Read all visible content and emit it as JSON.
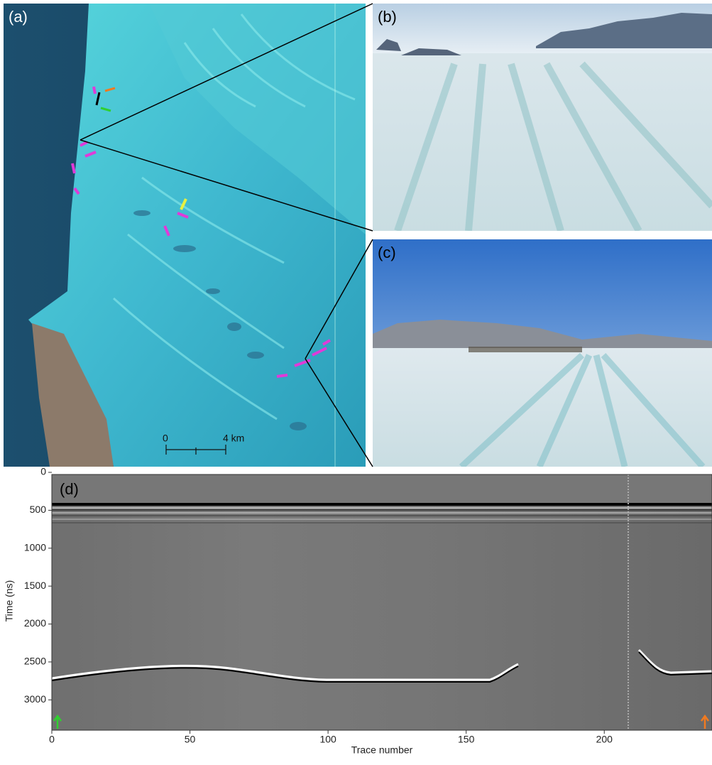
{
  "panel_a": {
    "label": "(a)",
    "scale_bar": {
      "start_label": "0",
      "end_label": "4 km"
    }
  },
  "panel_b": {
    "label": "(b)"
  },
  "panel_c": {
    "label": "(c)"
  },
  "chart_data": {
    "type": "radargram",
    "panel_label": "(d)",
    "x_label": "Trace number",
    "y_label": "Time (ns)",
    "xlim": [
      0,
      239
    ],
    "xticks": [
      0,
      50,
      100,
      150,
      200
    ],
    "ylim": [
      0,
      3400
    ],
    "yticks": [
      0,
      500,
      1000,
      1500,
      2000,
      2500,
      3000
    ],
    "y_inverted": true
  }
}
